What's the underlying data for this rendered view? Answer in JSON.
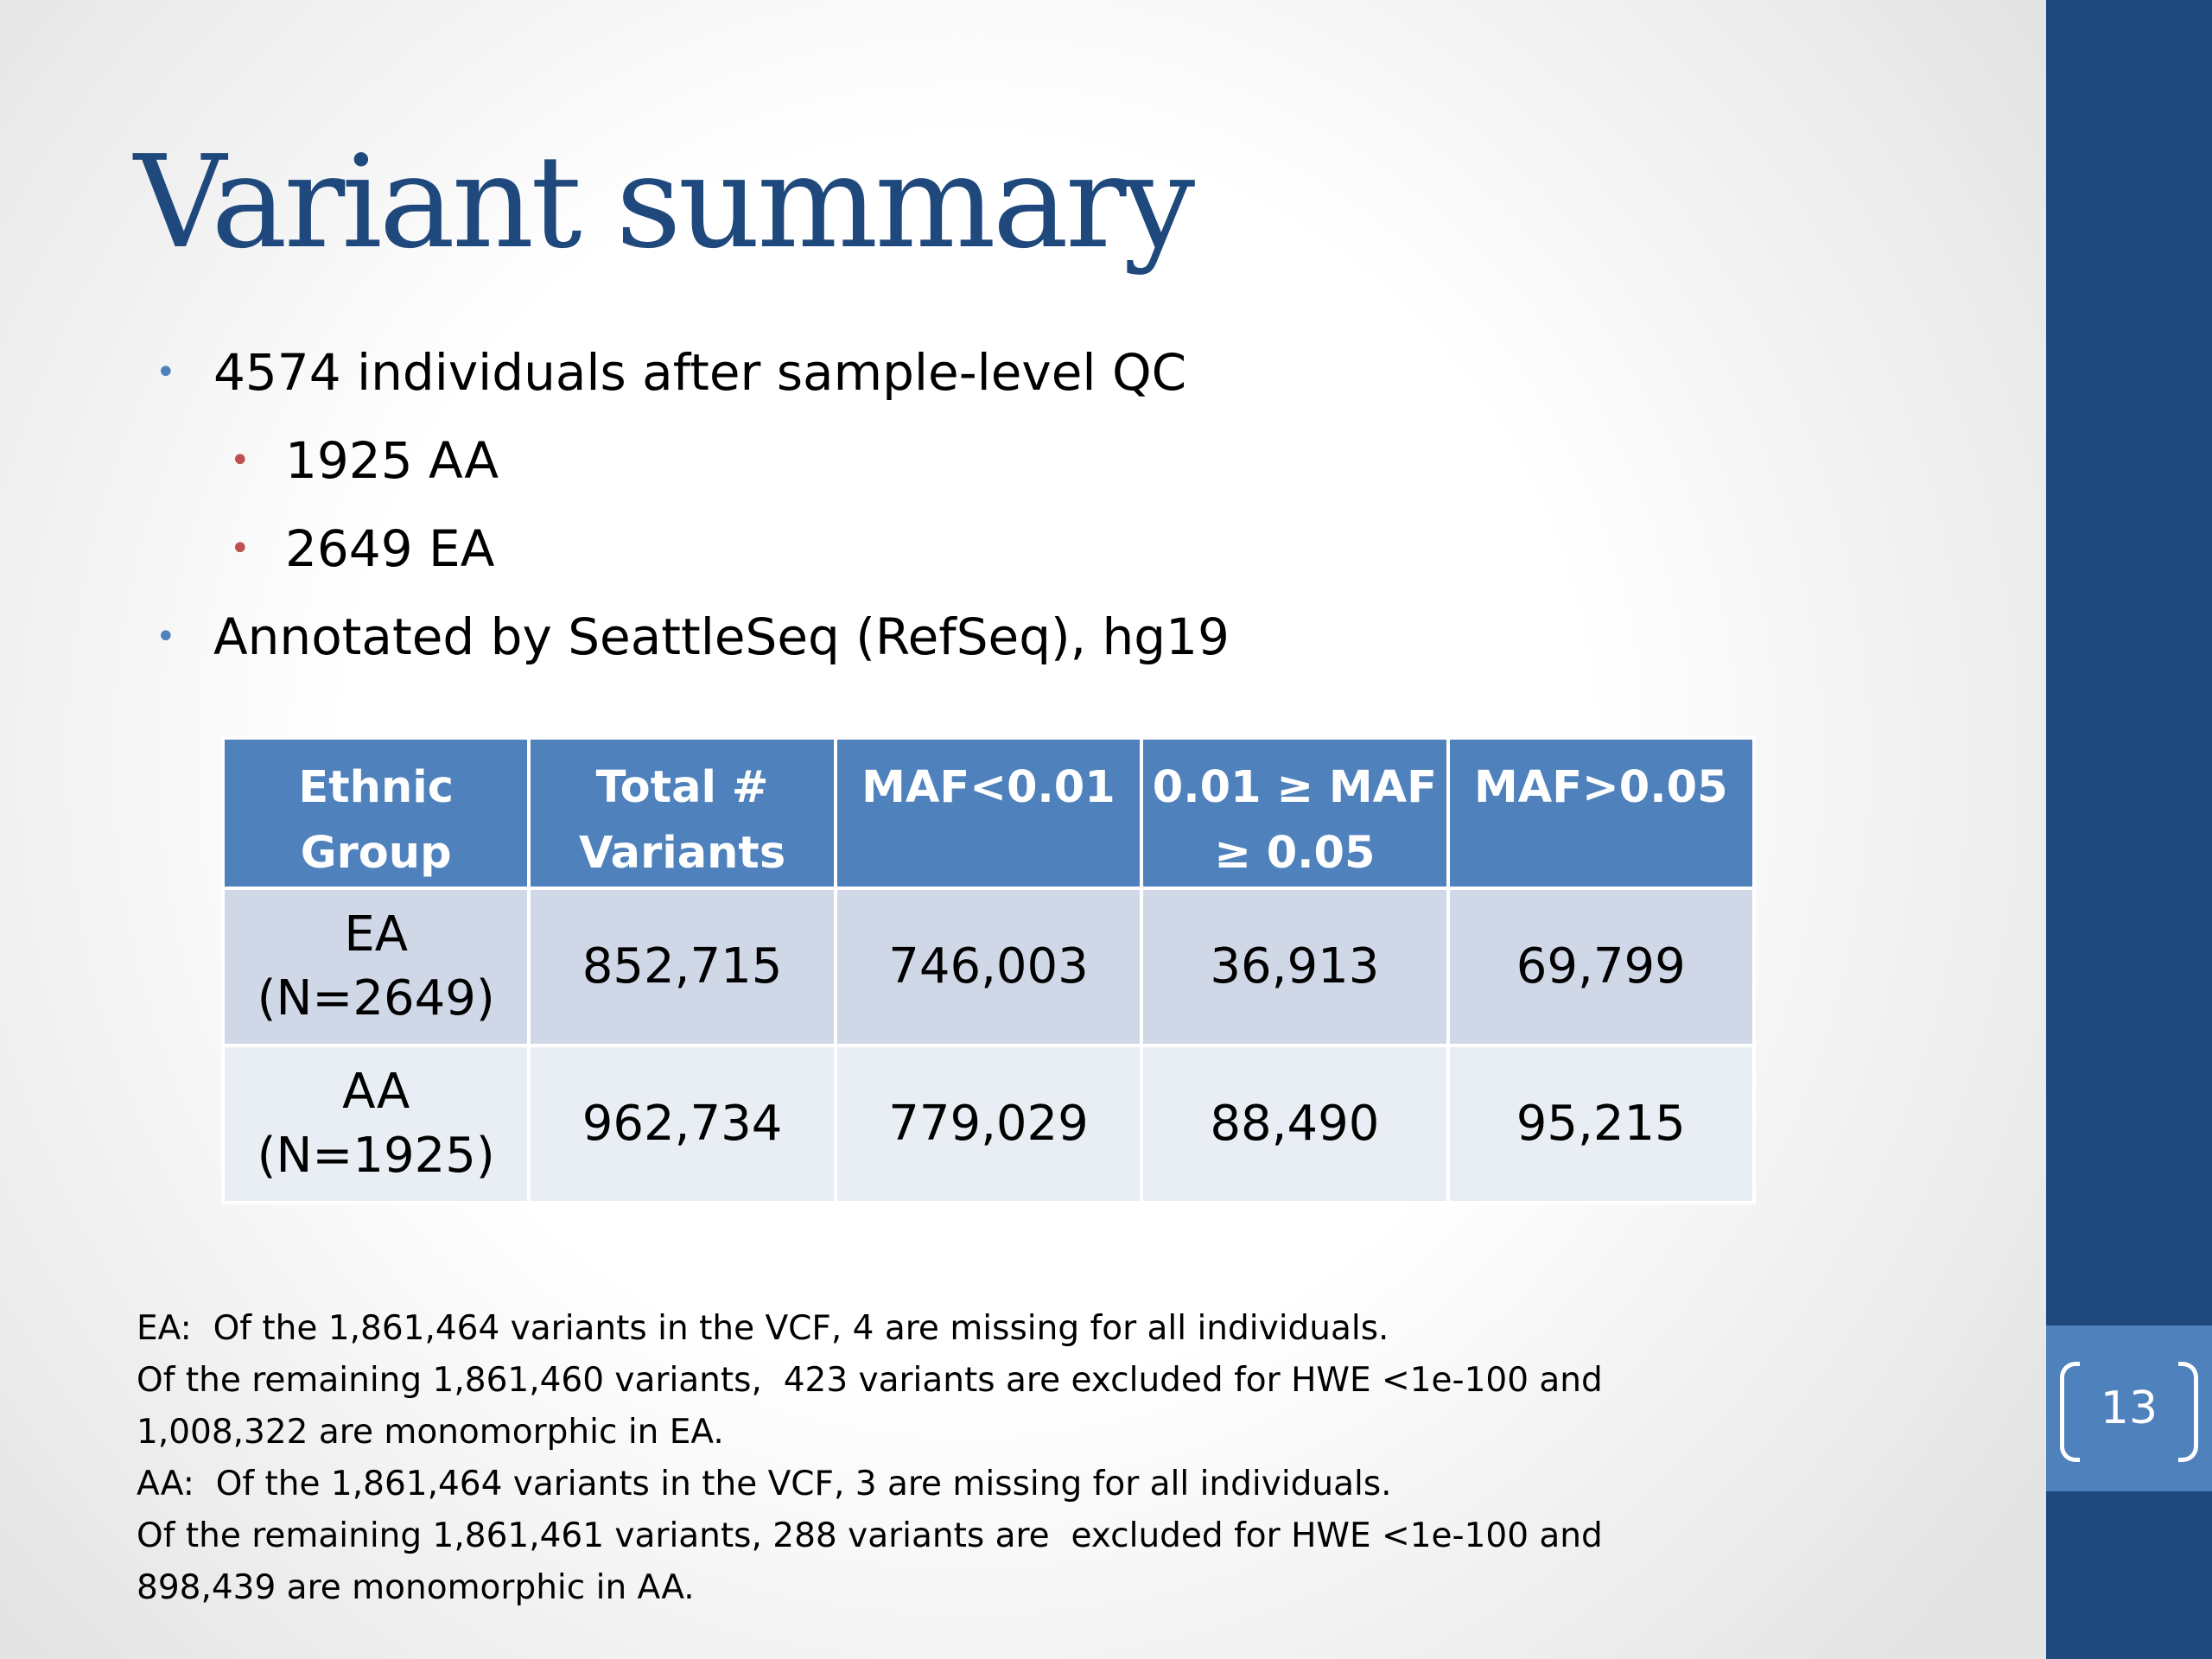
{
  "slide": {
    "title": "Variant summary",
    "page_number": "13"
  },
  "bullets": [
    {
      "level": 1,
      "text": "4574 individuals after sample-level QC"
    },
    {
      "level": 2,
      "text": "1925 AA"
    },
    {
      "level": 2,
      "text": "2649 EA"
    },
    {
      "level": 1,
      "text": "Annotated by SeattleSeq (RefSeq), hg19"
    }
  ],
  "bullet_glyph": "•",
  "table": {
    "headers": [
      {
        "line1": "Ethnic",
        "line2": "Group"
      },
      {
        "line1": "Total #",
        "line2": "Variants"
      },
      {
        "line1": "MAF<0.01",
        "line2": ""
      },
      {
        "line1": "0.01 ≥ MAF",
        "line2": "≥ 0.05"
      },
      {
        "line1": "MAF>0.05",
        "line2": ""
      }
    ],
    "rows": [
      {
        "group": "EA",
        "n": "(N=2649)",
        "total": "852,715",
        "maf_lt_001": "746,003",
        "maf_mid": "36,913",
        "maf_gt_005": "69,799"
      },
      {
        "group": "AA",
        "n": "(N=1925)",
        "total": "962,734",
        "maf_lt_001": "779,029",
        "maf_mid": "88,490",
        "maf_gt_005": "95,215"
      }
    ]
  },
  "notes": [
    "EA:  Of the 1,861,464 variants in the VCF, 4 are missing for all individuals.",
    "Of the remaining 1,861,460 variants,  423 variants are excluded for HWE <1e-100 and",
    "1,008,322 are monomorphic in EA.",
    "AA:  Of the 1,861,464 variants in the VCF, 3 are missing for all individuals.",
    "Of the remaining 1,861,461 variants, 288 variants are  excluded for HWE <1e-100 and",
    "898,439 are monomorphic in AA."
  ],
  "colors": {
    "title": "#1f497d",
    "sidebar": "#1f497d",
    "page_box": "#4f81bd",
    "table_header": "#4f81bd",
    "row_odd": "#d0d8e8",
    "row_even": "#e9edf4",
    "bullet_level1": "#4f81bd",
    "bullet_level2": "#c0504d"
  }
}
